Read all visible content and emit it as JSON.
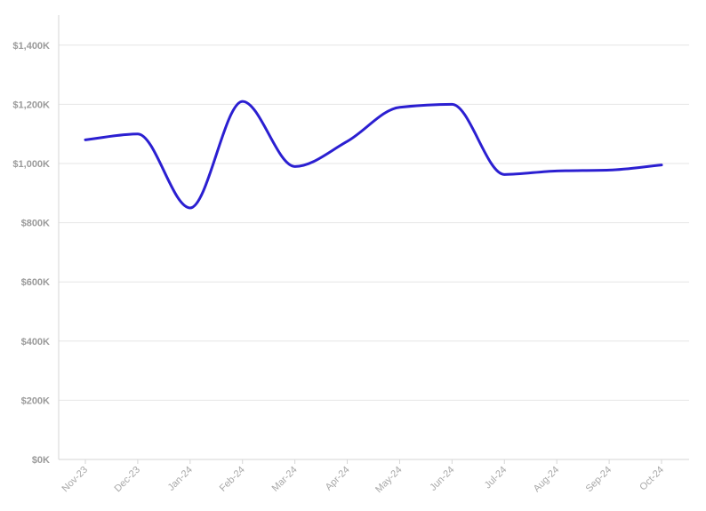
{
  "chart_data": {
    "type": "line",
    "title": "",
    "xlabel": "",
    "ylabel": "",
    "categories": [
      "Nov-23",
      "Dec-23",
      "Jan-24",
      "Feb-24",
      "Mar-24",
      "Apr-24",
      "May-24",
      "Jun-24",
      "Jul-24",
      "Aug-24",
      "Sep-24",
      "Oct-24"
    ],
    "series": [
      {
        "values": [
          1080000,
          1100000,
          850000,
          1210000,
          990000,
          1075000,
          1190000,
          1200000,
          963000,
          975000,
          978000,
          995000
        ],
        "color": "#2b1fd1"
      }
    ],
    "yticks": [
      0,
      200000,
      400000,
      600000,
      800000,
      1000000,
      1200000,
      1400000
    ],
    "ytick_labels": [
      "$0K",
      "$200K",
      "$400K",
      "$600K",
      "$800K",
      "$1,000K",
      "$1,200K",
      "$1,400K"
    ],
    "ylim": [
      0,
      1500000
    ],
    "grid": true,
    "gridline_color": "#e6e6e6",
    "axis_color": "#d6d6d6",
    "legend": "none"
  }
}
